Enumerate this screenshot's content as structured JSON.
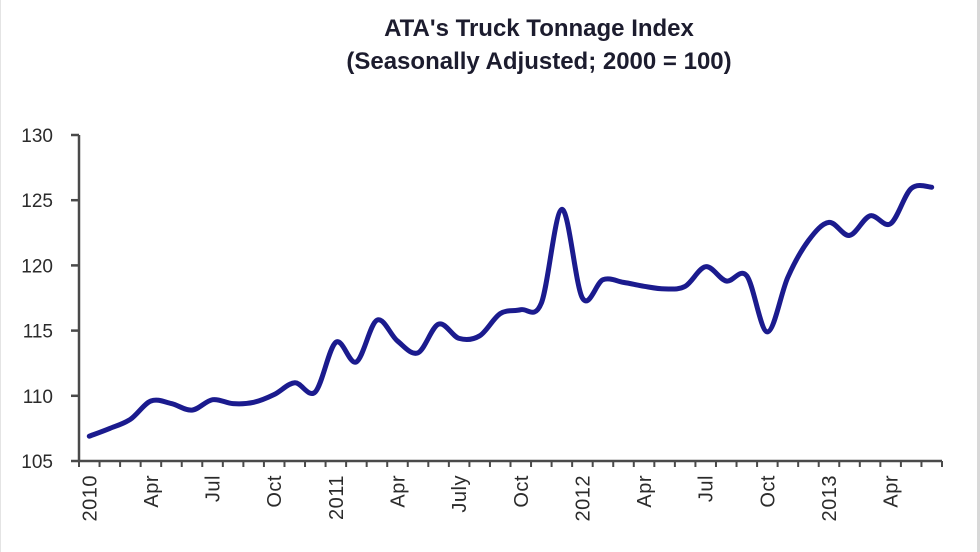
{
  "title": {
    "line1": "ATA's Truck Tonnage Index",
    "line2": "(Seasonally Adjusted; 2000 = 100)"
  },
  "chart_data": {
    "type": "line",
    "title": "ATA's Truck Tonnage Index",
    "subtitle": "(Seasonally Adjusted; 2000 = 100)",
    "smoothed": true,
    "grid": false,
    "legend": "none",
    "xlabel": "",
    "ylabel": "",
    "ylim": [
      105,
      130
    ],
    "y_ticks": [
      105,
      110,
      115,
      120,
      125,
      130
    ],
    "x_minor_ticks": "monthly",
    "x": [
      "Jan 2010",
      "Feb 2010",
      "Mar 2010",
      "Apr 2010",
      "May 2010",
      "Jun 2010",
      "Jul 2010",
      "Aug 2010",
      "Sep 2010",
      "Oct 2010",
      "Nov 2010",
      "Dec 2010",
      "Jan 2011",
      "Feb 2011",
      "Mar 2011",
      "Apr 2011",
      "May 2011",
      "Jun 2011",
      "Jul 2011",
      "Aug 2011",
      "Sep 2011",
      "Oct 2011",
      "Nov 2011",
      "Dec 2011",
      "Jan 2012",
      "Feb 2012",
      "Mar 2012",
      "Apr 2012",
      "May 2012",
      "Jun 2012",
      "Jul 2012",
      "Aug 2012",
      "Sep 2012",
      "Oct 2012",
      "Nov 2012",
      "Dec 2012",
      "Jan 2013",
      "Feb 2013",
      "Mar 2013",
      "Apr 2013",
      "May 2013",
      "Jun 2013"
    ],
    "x_tick_labels": [
      "2010",
      "",
      "",
      "Apr",
      "",
      "",
      "Jul",
      "",
      "",
      "Oct",
      "",
      "",
      "2011",
      "",
      "",
      "Apr",
      "",
      "",
      "July",
      "",
      "",
      "Oct",
      "",
      "",
      "2012",
      "",
      "",
      "Apr",
      "",
      "",
      "Jul",
      "",
      "",
      "Oct",
      "",
      "",
      "2013",
      "",
      "",
      "Apr",
      "",
      ""
    ],
    "values": [
      106.9,
      107.5,
      108.2,
      109.6,
      109.4,
      108.9,
      109.7,
      109.4,
      109.5,
      110.1,
      111.0,
      110.3,
      114.1,
      112.6,
      115.8,
      114.2,
      113.3,
      115.5,
      114.4,
      114.6,
      116.3,
      116.6,
      117.1,
      124.3,
      117.5,
      118.9,
      118.7,
      118.4,
      118.2,
      118.4,
      119.9,
      118.8,
      119.2,
      114.9,
      119.1,
      121.9,
      123.3,
      122.3,
      123.8,
      123.2,
      125.9,
      126.0
    ],
    "line_color": "#1b1b8e",
    "axis_color": "#4a4a4a",
    "label_color": "#2b2b2b",
    "title_color": "#1c1c2e"
  }
}
